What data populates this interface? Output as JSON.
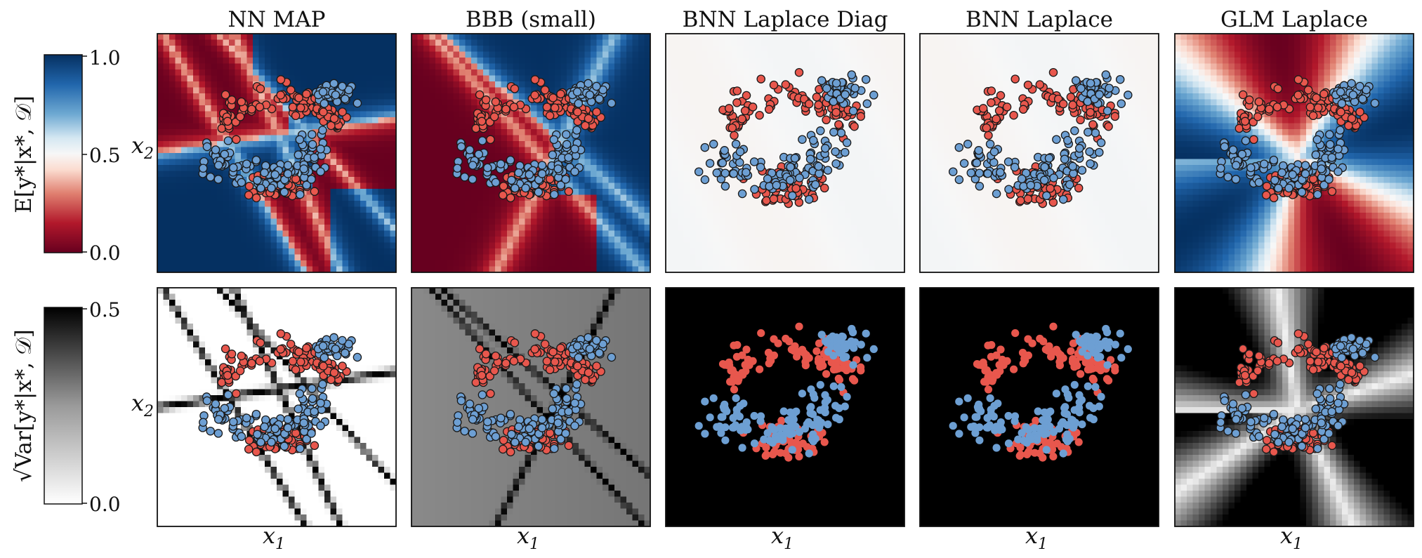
{
  "figure": {
    "row_labels": {
      "mean": "E[y*|x*, 𝒟]",
      "std": "√Var[y*|x*, 𝒟]"
    },
    "colorbars": [
      {
        "name": "mean",
        "colormap": "RdBu",
        "ticks": [
          "0.0",
          "0.5",
          "1.0"
        ],
        "range": [
          0,
          1
        ]
      },
      {
        "name": "std",
        "colormap": "Greys",
        "ticks": [
          "0.0",
          "0.5"
        ],
        "range": [
          0,
          0.5
        ]
      }
    ],
    "x_axis_label": "x1",
    "y_axis_label": "x2"
  },
  "colors": {
    "class_0_points": "#e8574d",
    "class_1_points": "#6d9fd3",
    "point_edge": "#1a1a1a",
    "red_dark": "#67001f",
    "blue_dark": "#053061",
    "neutral": "#f7f7f7"
  },
  "chart_data": [
    {
      "type": "heatmap",
      "title": "NN MAP",
      "row": "mean",
      "description_of_field": "sharp piecewise-linear decision regions, near 0 or 1 everywhere",
      "value_range": [
        0,
        1
      ],
      "ylabel": "x2",
      "xlabel": ""
    },
    {
      "type": "heatmap",
      "title": "BBB (small)",
      "row": "mean",
      "value_range": [
        0,
        1
      ],
      "xlabel": "",
      "ylabel": ""
    },
    {
      "type": "heatmap",
      "title": "BNN Laplace Diag",
      "row": "mean",
      "value_range": [
        0.49,
        0.51
      ],
      "xlabel": "",
      "ylabel": ""
    },
    {
      "type": "heatmap",
      "title": "BNN Laplace",
      "row": "mean",
      "value_range": [
        0.49,
        0.51
      ],
      "xlabel": "",
      "ylabel": ""
    },
    {
      "type": "heatmap",
      "title": "GLM Laplace",
      "row": "mean",
      "value_range": [
        0,
        1
      ],
      "xlabel": "",
      "ylabel": ""
    },
    {
      "type": "heatmap",
      "title": "",
      "row": "std",
      "model": "NN MAP",
      "value_range": [
        0,
        0.5
      ],
      "xlabel": "x1",
      "ylabel": "x2"
    },
    {
      "type": "heatmap",
      "title": "",
      "row": "std",
      "model": "BBB (small)",
      "value_range": [
        0.2,
        0.5
      ],
      "xlabel": "x1",
      "ylabel": ""
    },
    {
      "type": "heatmap",
      "title": "",
      "row": "std",
      "model": "BNN Laplace Diag",
      "value_range": [
        0.5,
        0.5
      ],
      "xlabel": "x1",
      "ylabel": ""
    },
    {
      "type": "heatmap",
      "title": "",
      "row": "std",
      "model": "BNN Laplace",
      "value_range": [
        0.5,
        0.5
      ],
      "xlabel": "x1",
      "ylabel": ""
    },
    {
      "type": "heatmap",
      "title": "",
      "row": "std",
      "model": "GLM Laplace",
      "value_range": [
        0,
        0.5
      ],
      "xlabel": "x1",
      "ylabel": ""
    }
  ],
  "scatter_data": {
    "type": "scatter",
    "x_range": [
      -1.7,
      1.7
    ],
    "y_range": [
      -1.7,
      1.7
    ],
    "class_0_count": 150,
    "class_1_count": 150
  }
}
